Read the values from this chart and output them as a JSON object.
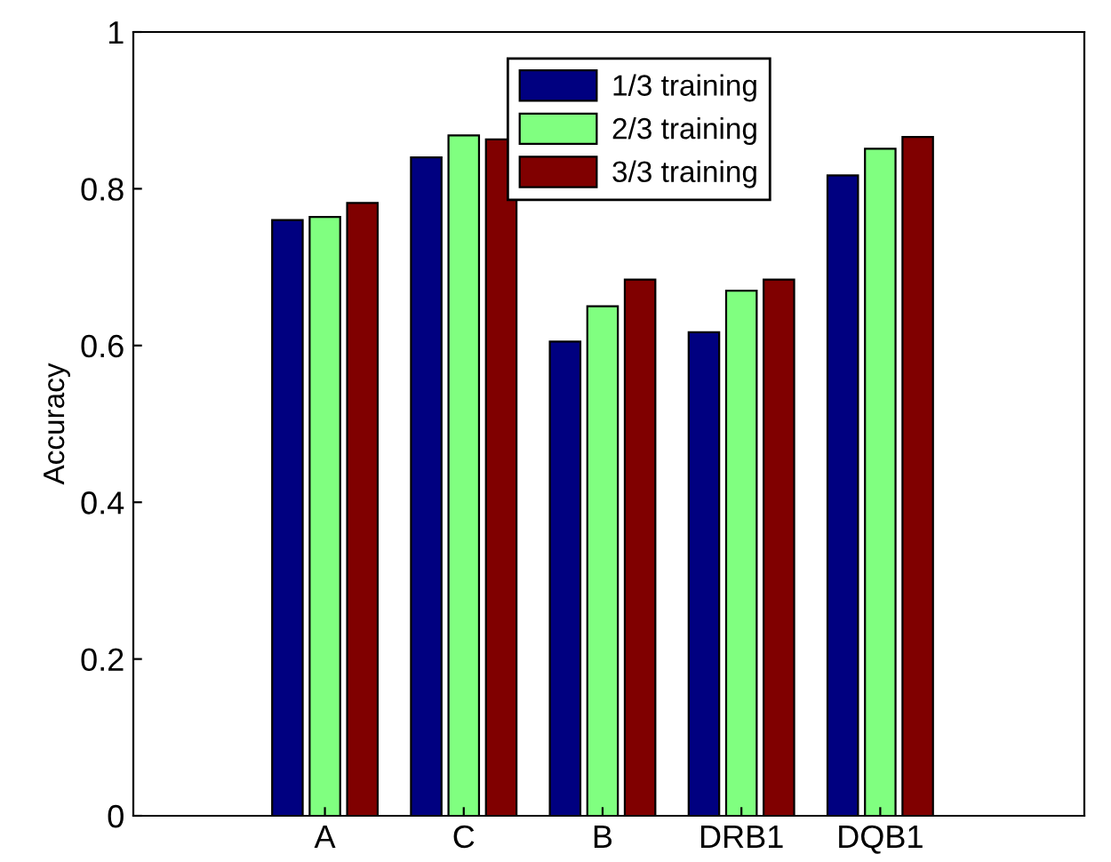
{
  "chart_data": {
    "type": "bar",
    "ylabel": "Accuracy",
    "categories": [
      "A",
      "C",
      "B",
      "DRB1",
      "DQB1"
    ],
    "series": [
      {
        "name": "1/3 training",
        "color": "#000080",
        "values": [
          0.76,
          0.84,
          0.605,
          0.617,
          0.817
        ]
      },
      {
        "name": "2/3 training",
        "color": "#80ff80",
        "values": [
          0.764,
          0.868,
          0.65,
          0.67,
          0.851
        ]
      },
      {
        "name": "3/3 training",
        "color": "#800000",
        "values": [
          0.782,
          0.863,
          0.684,
          0.684,
          0.866
        ]
      }
    ],
    "ylim": [
      0,
      1
    ],
    "yticks": [
      0,
      0.2,
      0.4,
      0.6,
      0.8,
      1
    ],
    "grid": false,
    "legend": "top"
  }
}
